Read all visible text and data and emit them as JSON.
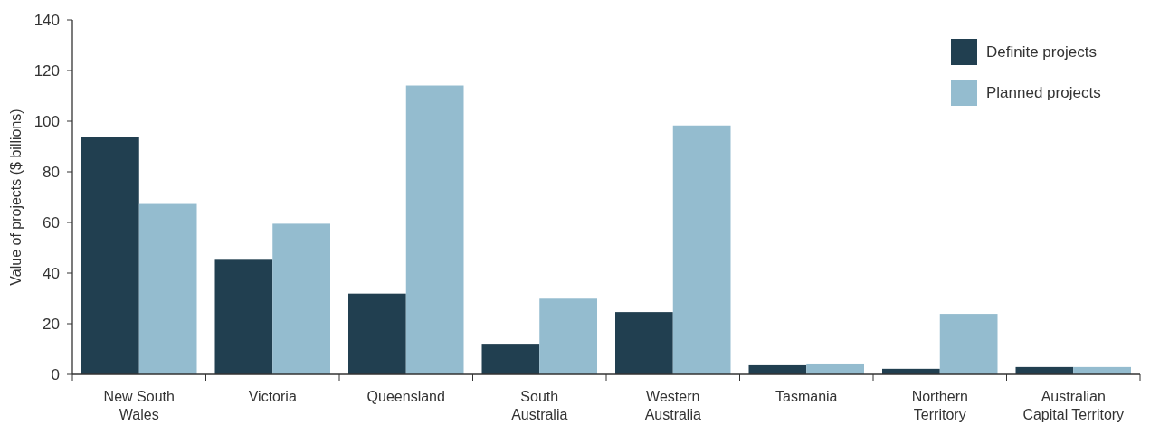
{
  "chart_data": {
    "type": "bar",
    "ylabel": "Value of projects ($ billions)",
    "categories": [
      "New South Wales",
      "Victoria",
      "Queensland",
      "South Australia",
      "Western Australia",
      "Tasmania",
      "Northern Territory",
      "Australian Capital Territory"
    ],
    "series": [
      {
        "name": "Definite projects",
        "color": "#213f50",
        "values": [
          93.8,
          45.6,
          31.9,
          12.1,
          24.6,
          3.6,
          2.2,
          2.9
        ]
      },
      {
        "name": "Planned projects",
        "color": "#94bccf",
        "values": [
          67.3,
          59.5,
          114.1,
          29.9,
          98.3,
          4.3,
          23.9,
          2.9
        ]
      }
    ],
    "ylim": [
      0,
      140
    ],
    "yticks": [
      0,
      20,
      40,
      60,
      80,
      100,
      120,
      140
    ],
    "grid": false,
    "legend": "top right"
  }
}
